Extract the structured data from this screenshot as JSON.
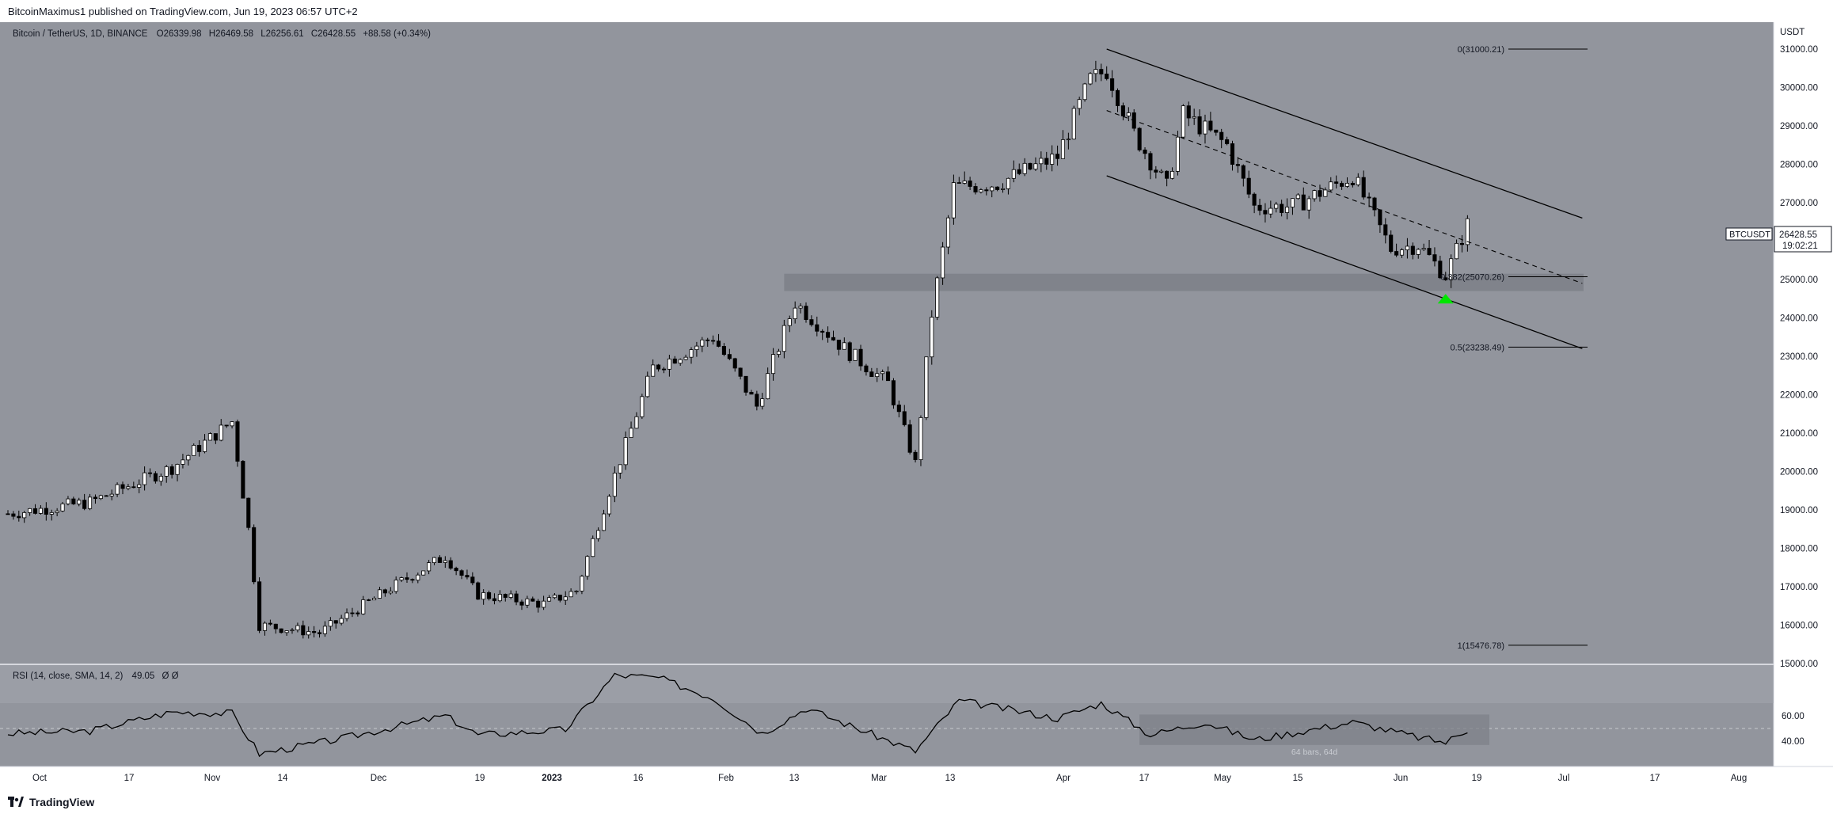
{
  "header": {
    "published_text": "BitcoinMaximus1 published on TradingView.com, Jun 19, 2023 06:57 UTC+2"
  },
  "legend": {
    "symbol_text": "Bitcoin / TetherUS, 1D, BINANCE",
    "ohlc": [
      {
        "label": "O",
        "value": "26339.98"
      },
      {
        "label": "H",
        "value": "26469.58"
      },
      {
        "label": "L",
        "value": "26256.61"
      },
      {
        "label": "C",
        "value": "26428.55"
      }
    ],
    "change": "+88.58 (+0.34%)"
  },
  "price_axis": {
    "currency": "USDT",
    "ticks": [
      "31000.00",
      "30000.00",
      "29000.00",
      "28000.00",
      "27000.00",
      "26000.00",
      "25000.00",
      "24000.00",
      "23000.00",
      "22000.00",
      "21000.00",
      "20000.00",
      "19000.00",
      "18000.00",
      "17000.00",
      "16000.00",
      "15000.00"
    ]
  },
  "price_tag": {
    "symbol": "BTCUSDT",
    "price": "26428.55",
    "countdown": "19:02:21"
  },
  "fib_levels": [
    {
      "label": "0(31000.21)",
      "value": 31000.21
    },
    {
      "label": "0.382(25070.26)",
      "value": 25070.26
    },
    {
      "label": "0.5(23238.49)",
      "value": 23238.49
    },
    {
      "label": "1(15476.78)",
      "value": 15476.78
    }
  ],
  "rsi": {
    "legend": "RSI (14, close, SMA, 14, 2)",
    "value": "49.05",
    "extra": "Ø Ø",
    "ticks": [
      "60.00",
      "40.00"
    ],
    "range_label": "64 bars, 64d"
  },
  "time_axis": {
    "labels": [
      "Oct",
      "17",
      "Nov",
      "14",
      "Dec",
      "19",
      "2023",
      "16",
      "Feb",
      "13",
      "Mar",
      "13",
      "Apr",
      "17",
      "May",
      "15",
      "Jun",
      "19",
      "Jul",
      "17",
      "Aug"
    ]
  },
  "footer": {
    "brand": "TradingView"
  },
  "colors": {
    "chart_bg": "#92959d",
    "candle_up": "#ffffff",
    "candle_down": "#000000",
    "support_zone": "#7e8189",
    "highlight_arrow": "#00e600"
  },
  "chart_data": {
    "type": "candlestick",
    "symbol": "BTCUSDT",
    "timeframe": "1D",
    "x_range": [
      "2022-09-25",
      "2023-08-14"
    ],
    "y_range": [
      15000,
      31700
    ],
    "anchors": [
      {
        "date": "2022-09-25",
        "close": 18900
      },
      {
        "date": "2022-10-10",
        "close": 19200
      },
      {
        "date": "2022-10-25",
        "close": 20100
      },
      {
        "date": "2022-11-05",
        "close": 21300
      },
      {
        "date": "2022-11-08",
        "close": 18500
      },
      {
        "date": "2022-11-10",
        "close": 16000
      },
      {
        "date": "2022-11-21",
        "close": 15800
      },
      {
        "date": "2022-12-05",
        "close": 17050
      },
      {
        "date": "2022-12-14",
        "close": 17800
      },
      {
        "date": "2022-12-20",
        "close": 16800
      },
      {
        "date": "2023-01-01",
        "close": 16550
      },
      {
        "date": "2023-01-07",
        "close": 16900
      },
      {
        "date": "2023-01-13",
        "close": 19500
      },
      {
        "date": "2023-01-21",
        "close": 22700
      },
      {
        "date": "2023-02-01",
        "close": 23500
      },
      {
        "date": "2023-02-09",
        "close": 21700
      },
      {
        "date": "2023-02-16",
        "close": 24400
      },
      {
        "date": "2023-02-25",
        "close": 23200
      },
      {
        "date": "2023-03-05",
        "close": 22300
      },
      {
        "date": "2023-03-10",
        "close": 20200
      },
      {
        "date": "2023-03-13",
        "close": 24100
      },
      {
        "date": "2023-03-17",
        "close": 27400
      },
      {
        "date": "2023-03-25",
        "close": 27500
      },
      {
        "date": "2023-04-05",
        "close": 28200
      },
      {
        "date": "2023-04-11",
        "close": 30200
      },
      {
        "date": "2023-04-14",
        "close": 30450
      },
      {
        "date": "2023-04-19",
        "close": 28800
      },
      {
        "date": "2023-04-25",
        "close": 27400
      },
      {
        "date": "2023-04-28",
        "close": 29300
      },
      {
        "date": "2023-05-06",
        "close": 28500
      },
      {
        "date": "2023-05-11",
        "close": 26900
      },
      {
        "date": "2023-05-18",
        "close": 26900
      },
      {
        "date": "2023-05-29",
        "close": 27700
      },
      {
        "date": "2023-06-05",
        "close": 25800
      },
      {
        "date": "2023-06-10",
        "close": 25900
      },
      {
        "date": "2023-06-15",
        "close": 25100
      },
      {
        "date": "2023-06-19",
        "close": 26428.55
      }
    ],
    "channel": {
      "upper": [
        {
          "date": "2023-04-14",
          "value": 31000
        },
        {
          "date": "2023-07-10",
          "value": 26600
        }
      ],
      "middle": [
        {
          "date": "2023-04-14",
          "value": 29400
        },
        {
          "date": "2023-07-10",
          "value": 24900
        }
      ],
      "lower": [
        {
          "date": "2023-04-14",
          "value": 27700
        },
        {
          "date": "2023-07-10",
          "value": 23200
        }
      ]
    },
    "support_zone": {
      "from_date": "2023-02-14",
      "low": 24700,
      "high": 25150
    },
    "arrow": {
      "date": "2023-06-15",
      "value": 24500
    },
    "rsi_series": [
      {
        "date": "2022-09-25",
        "value": 46
      },
      {
        "date": "2022-10-10",
        "value": 48
      },
      {
        "date": "2022-10-25",
        "value": 63
      },
      {
        "date": "2022-11-05",
        "value": 62
      },
      {
        "date": "2022-11-10",
        "value": 30
      },
      {
        "date": "2022-11-25",
        "value": 42
      },
      {
        "date": "2022-12-14",
        "value": 60
      },
      {
        "date": "2022-12-20",
        "value": 45
      },
      {
        "date": "2023-01-05",
        "value": 49
      },
      {
        "date": "2023-01-14",
        "value": 92
      },
      {
        "date": "2023-01-22",
        "value": 90
      },
      {
        "date": "2023-02-01",
        "value": 74
      },
      {
        "date": "2023-02-10",
        "value": 46
      },
      {
        "date": "2023-02-18",
        "value": 66
      },
      {
        "date": "2023-03-10",
        "value": 32
      },
      {
        "date": "2023-03-18",
        "value": 72
      },
      {
        "date": "2023-04-05",
        "value": 58
      },
      {
        "date": "2023-04-13",
        "value": 70
      },
      {
        "date": "2023-04-22",
        "value": 45
      },
      {
        "date": "2023-05-02",
        "value": 55
      },
      {
        "date": "2023-05-11",
        "value": 41
      },
      {
        "date": "2023-05-29",
        "value": 55
      },
      {
        "date": "2023-06-10",
        "value": 43
      },
      {
        "date": "2023-06-15",
        "value": 39
      },
      {
        "date": "2023-06-19",
        "value": 49.05
      }
    ],
    "rsi_range_box": {
      "from_date": "2023-04-20",
      "to_date": "2023-06-23",
      "low": 37,
      "high": 61
    },
    "rsi_ticks": [
      60,
      40
    ],
    "rsi_midline": 50
  }
}
